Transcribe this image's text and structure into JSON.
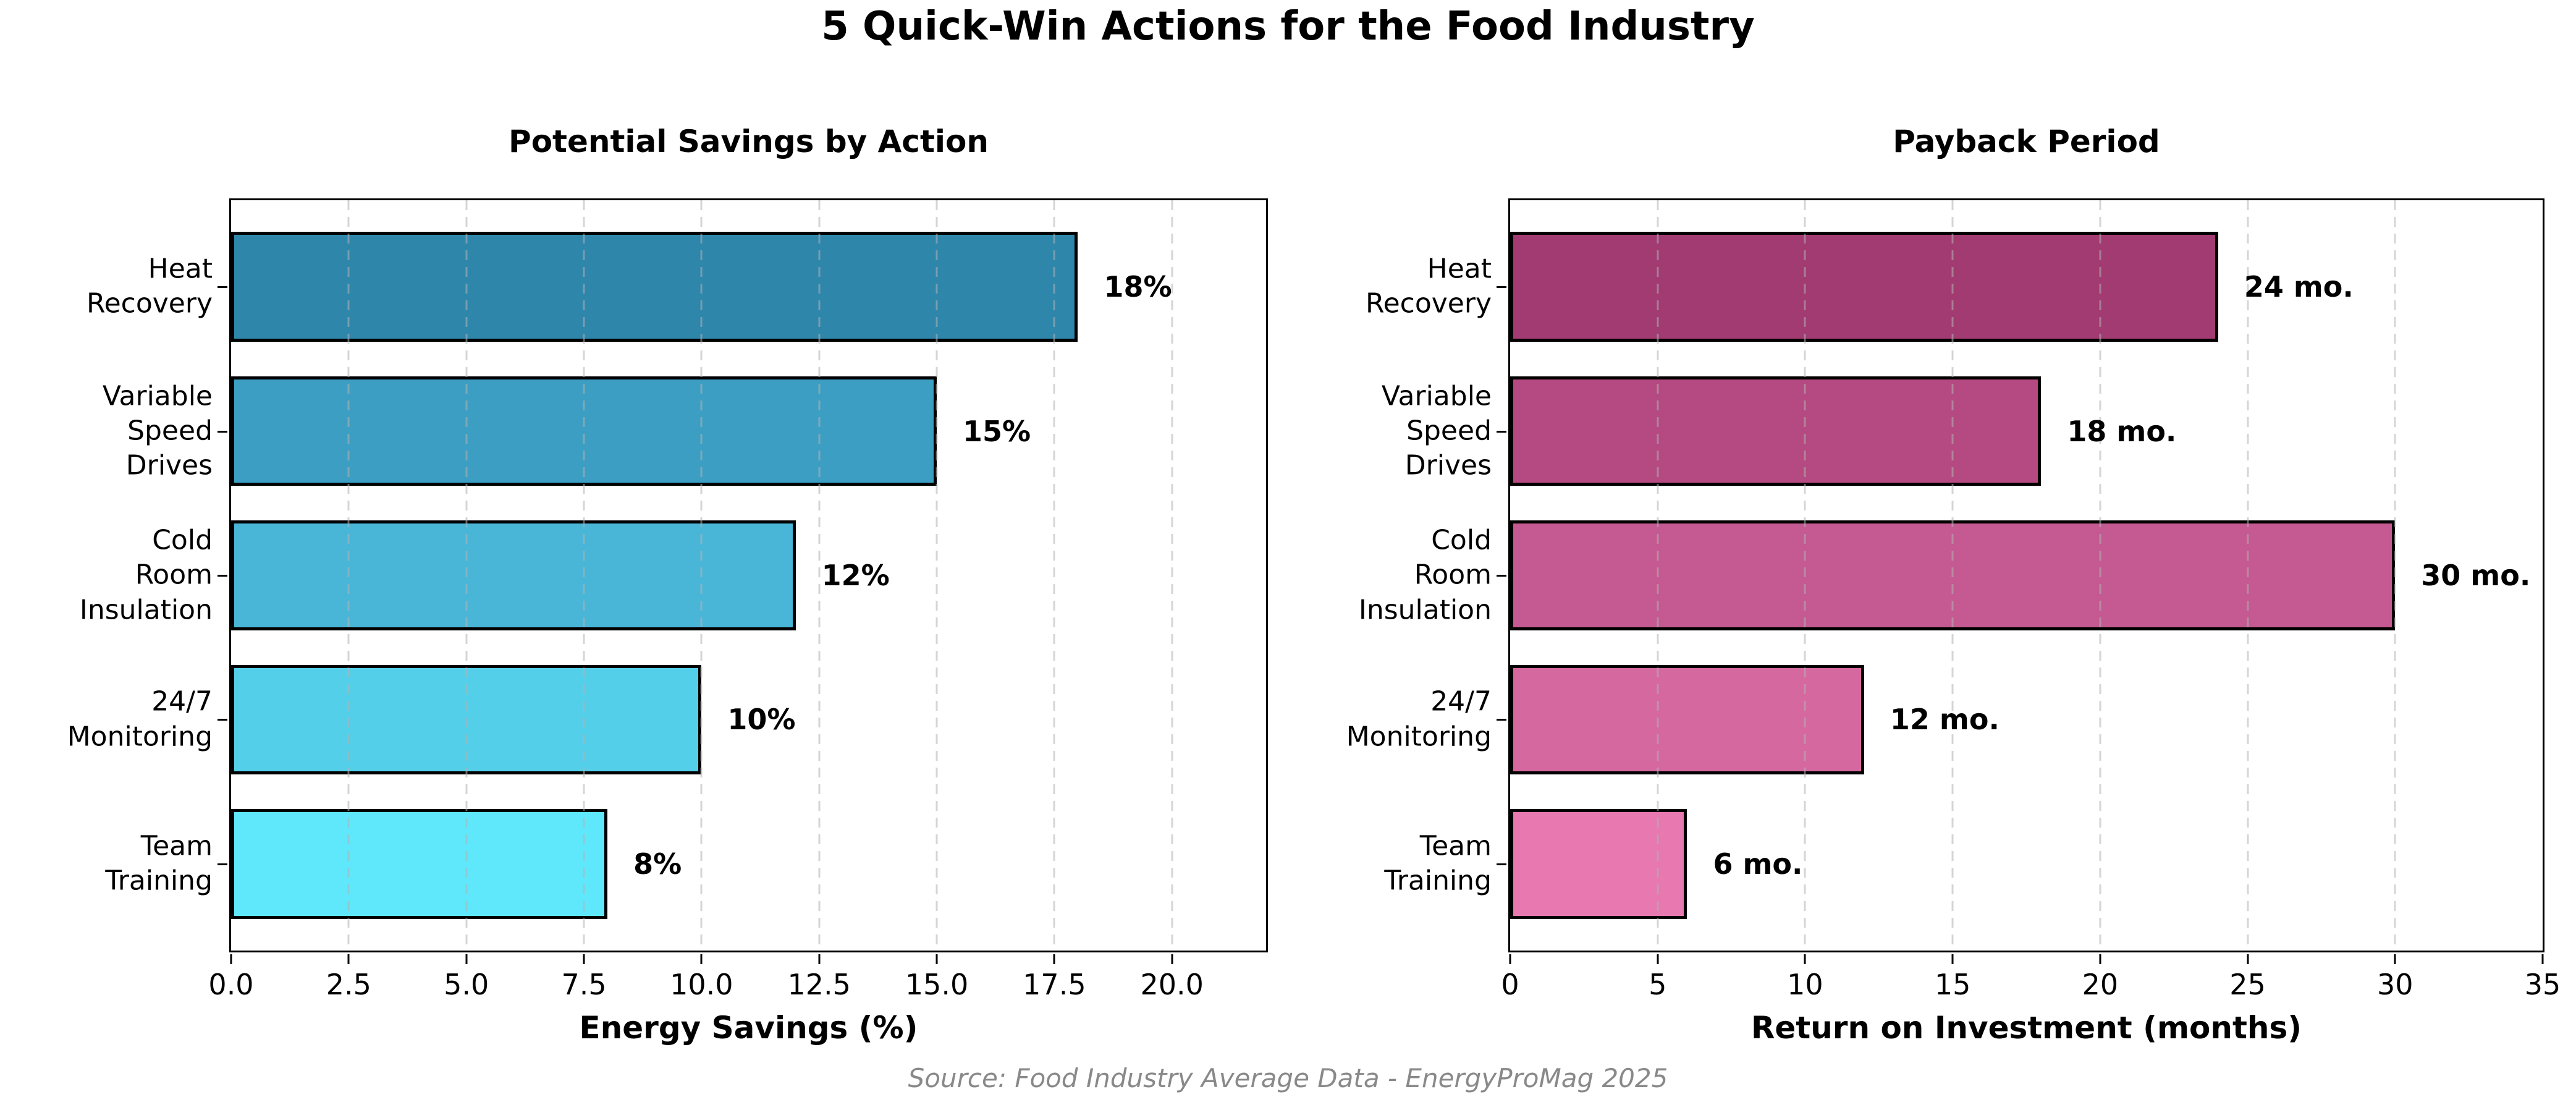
{
  "page_title": "5 Quick-Win Actions for the Food Industry",
  "source_note": "Source: Food Industry Average Data - EnergyProMag 2025",
  "colors": {
    "background": "#ffffff",
    "text": "#000000",
    "source_text": "#898989",
    "grid": "#c9c9c9",
    "bar_edge": "#000000"
  },
  "chart_data": [
    {
      "type": "bar",
      "orientation": "horizontal",
      "title": "Potential Savings by Action",
      "categories": [
        "Heat\nRecovery",
        "Variable Speed\nDrives",
        "Cold Room\nInsulation",
        "24/7\nMonitoring",
        "Team\nTraining"
      ],
      "values": [
        18,
        15,
        12,
        10,
        8
      ],
      "value_labels": [
        "18%",
        "15%",
        "12%",
        "10%",
        "8%"
      ],
      "bar_colors": [
        "#2E86AB",
        "#3C9EC2",
        "#49B6D8",
        "#54CFEA",
        "#5FE8FB"
      ],
      "xlabel": "Energy Savings (%)",
      "xlim": [
        0,
        22
      ],
      "xticks": [
        0,
        2.5,
        5,
        7.5,
        10,
        12.5,
        15,
        17.5,
        20
      ],
      "xtick_labels": [
        "0.0",
        "2.5",
        "5.0",
        "7.5",
        "10.0",
        "12.5",
        "15.0",
        "17.5",
        "20.0"
      ],
      "grid": "vertical-dashed",
      "legend": null
    },
    {
      "type": "bar",
      "orientation": "horizontal",
      "title": "Payback Period",
      "categories": [
        "Heat\nRecovery",
        "Variable Speed\nDrives",
        "Cold Room\nInsulation",
        "24/7\nMonitoring",
        "Team\nTraining"
      ],
      "values": [
        24,
        18,
        30,
        12,
        6
      ],
      "value_labels": [
        "24 mo.",
        "18 mo.",
        "30 mo.",
        "12 mo.",
        "6 mo."
      ],
      "bar_colors": [
        "#A23B72",
        "#B44A81",
        "#C55991",
        "#D668A0",
        "#E778B0"
      ],
      "xlabel": "Return on Investment (months)",
      "xlim": [
        0,
        35
      ],
      "xticks": [
        0,
        5,
        10,
        15,
        20,
        25,
        30,
        35
      ],
      "xtick_labels": [
        "0",
        "5",
        "10",
        "15",
        "20",
        "25",
        "30",
        "35"
      ],
      "grid": "vertical-dashed",
      "legend": null
    }
  ]
}
